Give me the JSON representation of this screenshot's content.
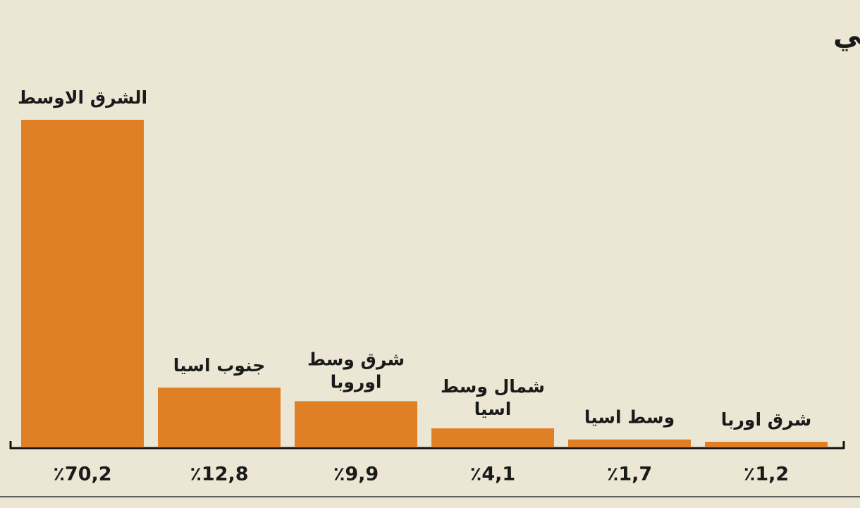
{
  "chart_data": {
    "type": "bar",
    "title": "توزيع السعة المقعدية لفلاي دبي",
    "categories": [
      "الشرق الاوسط",
      "جنوب اسيا",
      [
        "شرق وسط",
        "اوروبا"
      ],
      [
        "شمال وسط",
        "اسيا"
      ],
      "وسط اسيا",
      "شرق اوربا"
    ],
    "values": [
      70.2,
      12.8,
      9.9,
      4.1,
      1.7,
      1.2
    ],
    "value_labels": [
      "٪70,2",
      "٪12,8",
      "٪9,9",
      "٪4,1",
      "٪1,7",
      "٪1,2"
    ],
    "color": "#e07f26"
  }
}
